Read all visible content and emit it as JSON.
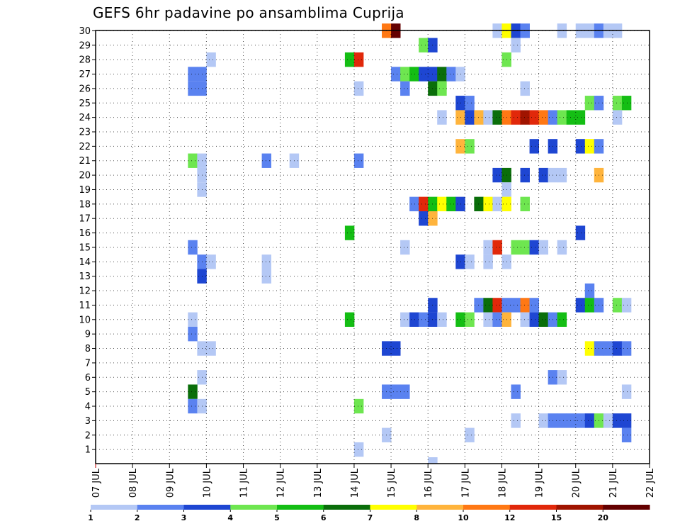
{
  "title": "GEFS 6hr padavine po ansamblima Cuprija",
  "chart_data": {
    "type": "heatmap",
    "title": "GEFS 6hr padavine po ansamblima Cuprija",
    "x_unit": "hours since 07 JUL 00Z",
    "x_tick_labels": [
      "07 JUL",
      "08 JUL",
      "09 JUL",
      "10 JUL",
      "11 JUL",
      "12 JUL",
      "13 JUL",
      "14 JUL",
      "15 JUL",
      "16 JUL",
      "17 JUL",
      "18 JUL",
      "19 JUL",
      "20 JUL",
      "21 JUL",
      "22 JUL"
    ],
    "y_tick_labels": [
      "1",
      "2",
      "3",
      "4",
      "5",
      "6",
      "7",
      "8",
      "9",
      "10",
      "11",
      "12",
      "13",
      "14",
      "15",
      "16",
      "17",
      "18",
      "19",
      "20",
      "21",
      "22",
      "23",
      "24",
      "25",
      "26",
      "27",
      "28",
      "29",
      "30"
    ],
    "ylim": [
      0,
      30
    ],
    "grid": true,
    "legend": {
      "position": "bottom",
      "bounds": [
        "1",
        "2",
        "3",
        "4",
        "5",
        "6",
        "7",
        "8",
        "10",
        "12",
        "15",
        "20"
      ],
      "colors": [
        "#b4c8f5",
        "#5a82f0",
        "#1e46d2",
        "#6ee650",
        "#14be14",
        "#0a6e0a",
        "#ffff00",
        "#ffb43c",
        "#ff7814",
        "#e1280a",
        "#a01400",
        "#640000"
      ]
    },
    "cells": [
      {
        "m": 30,
        "t": 186,
        "c": 8
      },
      {
        "m": 30,
        "t": 192,
        "c": 11
      },
      {
        "m": 30,
        "t": 258,
        "c": 0
      },
      {
        "m": 30,
        "t": 264,
        "c": 6
      },
      {
        "m": 30,
        "t": 270,
        "c": 2
      },
      {
        "m": 30,
        "t": 276,
        "c": 1
      },
      {
        "m": 30,
        "t": 300,
        "c": 0
      },
      {
        "m": 30,
        "t": 312,
        "c": 0
      },
      {
        "m": 30,
        "t": 318,
        "c": 0
      },
      {
        "m": 30,
        "t": 324,
        "c": 1
      },
      {
        "m": 30,
        "t": 330,
        "c": 0
      },
      {
        "m": 30,
        "t": 336,
        "c": 0
      },
      {
        "m": 29,
        "t": 210,
        "c": 3
      },
      {
        "m": 29,
        "t": 216,
        "c": 2
      },
      {
        "m": 29,
        "t": 270,
        "c": 0
      },
      {
        "m": 28,
        "t": 72,
        "c": 0
      },
      {
        "m": 28,
        "t": 162,
        "c": 4
      },
      {
        "m": 28,
        "t": 168,
        "c": 9
      },
      {
        "m": 28,
        "t": 264,
        "c": 3
      },
      {
        "m": 27,
        "t": 60,
        "c": 1
      },
      {
        "m": 27,
        "t": 66,
        "c": 1
      },
      {
        "m": 27,
        "t": 192,
        "c": 1
      },
      {
        "m": 27,
        "t": 198,
        "c": 3
      },
      {
        "m": 27,
        "t": 204,
        "c": 4
      },
      {
        "m": 27,
        "t": 210,
        "c": 2
      },
      {
        "m": 27,
        "t": 216,
        "c": 2
      },
      {
        "m": 27,
        "t": 222,
        "c": 5
      },
      {
        "m": 27,
        "t": 228,
        "c": 1
      },
      {
        "m": 27,
        "t": 234,
        "c": 0
      },
      {
        "m": 26,
        "t": 60,
        "c": 1
      },
      {
        "m": 26,
        "t": 66,
        "c": 1
      },
      {
        "m": 26,
        "t": 168,
        "c": 0
      },
      {
        "m": 26,
        "t": 198,
        "c": 1
      },
      {
        "m": 26,
        "t": 216,
        "c": 5
      },
      {
        "m": 26,
        "t": 222,
        "c": 3
      },
      {
        "m": 26,
        "t": 276,
        "c": 0
      },
      {
        "m": 25,
        "t": 234,
        "c": 2
      },
      {
        "m": 25,
        "t": 240,
        "c": 1
      },
      {
        "m": 25,
        "t": 318,
        "c": 3
      },
      {
        "m": 25,
        "t": 324,
        "c": 1
      },
      {
        "m": 25,
        "t": 336,
        "c": 3
      },
      {
        "m": 25,
        "t": 342,
        "c": 4
      },
      {
        "m": 24,
        "t": 222,
        "c": 0
      },
      {
        "m": 24,
        "t": 234,
        "c": 7
      },
      {
        "m": 24,
        "t": 240,
        "c": 2
      },
      {
        "m": 24,
        "t": 246,
        "c": 7
      },
      {
        "m": 24,
        "t": 252,
        "c": 0
      },
      {
        "m": 24,
        "t": 258,
        "c": 5
      },
      {
        "m": 24,
        "t": 264,
        "c": 8
      },
      {
        "m": 24,
        "t": 270,
        "c": 9
      },
      {
        "m": 24,
        "t": 276,
        "c": 10
      },
      {
        "m": 24,
        "t": 282,
        "c": 9
      },
      {
        "m": 24,
        "t": 288,
        "c": 8
      },
      {
        "m": 24,
        "t": 294,
        "c": 1
      },
      {
        "m": 24,
        "t": 300,
        "c": 3
      },
      {
        "m": 24,
        "t": 306,
        "c": 4
      },
      {
        "m": 24,
        "t": 312,
        "c": 4
      },
      {
        "m": 24,
        "t": 336,
        "c": 0
      },
      {
        "m": 22,
        "t": 234,
        "c": 7
      },
      {
        "m": 22,
        "t": 240,
        "c": 3
      },
      {
        "m": 22,
        "t": 282,
        "c": 2
      },
      {
        "m": 22,
        "t": 294,
        "c": 2
      },
      {
        "m": 22,
        "t": 312,
        "c": 2
      },
      {
        "m": 22,
        "t": 318,
        "c": 6
      },
      {
        "m": 22,
        "t": 324,
        "c": 1
      },
      {
        "m": 21,
        "t": 60,
        "c": 3
      },
      {
        "m": 21,
        "t": 66,
        "c": 0
      },
      {
        "m": 21,
        "t": 108,
        "c": 1
      },
      {
        "m": 21,
        "t": 126,
        "c": 0
      },
      {
        "m": 21,
        "t": 168,
        "c": 1
      },
      {
        "m": 20,
        "t": 66,
        "c": 0
      },
      {
        "m": 20,
        "t": 258,
        "c": 2
      },
      {
        "m": 20,
        "t": 264,
        "c": 5
      },
      {
        "m": 20,
        "t": 276,
        "c": 2
      },
      {
        "m": 20,
        "t": 288,
        "c": 2
      },
      {
        "m": 20,
        "t": 294,
        "c": 0
      },
      {
        "m": 20,
        "t": 300,
        "c": 0
      },
      {
        "m": 20,
        "t": 324,
        "c": 7
      },
      {
        "m": 19,
        "t": 66,
        "c": 0
      },
      {
        "m": 19,
        "t": 264,
        "c": 0
      },
      {
        "m": 18,
        "t": 204,
        "c": 1
      },
      {
        "m": 18,
        "t": 210,
        "c": 9
      },
      {
        "m": 18,
        "t": 216,
        "c": 4
      },
      {
        "m": 18,
        "t": 222,
        "c": 6
      },
      {
        "m": 18,
        "t": 228,
        "c": 4
      },
      {
        "m": 18,
        "t": 234,
        "c": 2
      },
      {
        "m": 18,
        "t": 246,
        "c": 5
      },
      {
        "m": 18,
        "t": 252,
        "c": 6
      },
      {
        "m": 18,
        "t": 258,
        "c": 0
      },
      {
        "m": 18,
        "t": 264,
        "c": 6
      },
      {
        "m": 18,
        "t": 276,
        "c": 3
      },
      {
        "m": 17,
        "t": 210,
        "c": 2
      },
      {
        "m": 17,
        "t": 216,
        "c": 7
      },
      {
        "m": 16,
        "t": 162,
        "c": 4
      },
      {
        "m": 16,
        "t": 312,
        "c": 2
      },
      {
        "m": 15,
        "t": 60,
        "c": 1
      },
      {
        "m": 15,
        "t": 198,
        "c": 0
      },
      {
        "m": 15,
        "t": 252,
        "c": 0
      },
      {
        "m": 15,
        "t": 258,
        "c": 9
      },
      {
        "m": 15,
        "t": 270,
        "c": 3
      },
      {
        "m": 15,
        "t": 276,
        "c": 3
      },
      {
        "m": 15,
        "t": 282,
        "c": 2
      },
      {
        "m": 15,
        "t": 288,
        "c": 0
      },
      {
        "m": 15,
        "t": 300,
        "c": 0
      },
      {
        "m": 14,
        "t": 66,
        "c": 1
      },
      {
        "m": 14,
        "t": 72,
        "c": 0
      },
      {
        "m": 14,
        "t": 108,
        "c": 0
      },
      {
        "m": 14,
        "t": 234,
        "c": 2
      },
      {
        "m": 14,
        "t": 240,
        "c": 0
      },
      {
        "m": 14,
        "t": 252,
        "c": 0
      },
      {
        "m": 14,
        "t": 264,
        "c": 0
      },
      {
        "m": 13,
        "t": 66,
        "c": 2
      },
      {
        "m": 13,
        "t": 108,
        "c": 0
      },
      {
        "m": 12,
        "t": 318,
        "c": 1
      },
      {
        "m": 11,
        "t": 216,
        "c": 2
      },
      {
        "m": 11,
        "t": 246,
        "c": 1
      },
      {
        "m": 11,
        "t": 252,
        "c": 5
      },
      {
        "m": 11,
        "t": 258,
        "c": 9
      },
      {
        "m": 11,
        "t": 264,
        "c": 1
      },
      {
        "m": 11,
        "t": 270,
        "c": 1
      },
      {
        "m": 11,
        "t": 276,
        "c": 8
      },
      {
        "m": 11,
        "t": 282,
        "c": 1
      },
      {
        "m": 11,
        "t": 312,
        "c": 2
      },
      {
        "m": 11,
        "t": 318,
        "c": 4
      },
      {
        "m": 11,
        "t": 324,
        "c": 1
      },
      {
        "m": 11,
        "t": 336,
        "c": 3
      },
      {
        "m": 11,
        "t": 342,
        "c": 0
      },
      {
        "m": 10,
        "t": 60,
        "c": 0
      },
      {
        "m": 10,
        "t": 162,
        "c": 4
      },
      {
        "m": 10,
        "t": 198,
        "c": 0
      },
      {
        "m": 10,
        "t": 204,
        "c": 2
      },
      {
        "m": 10,
        "t": 210,
        "c": 1
      },
      {
        "m": 10,
        "t": 216,
        "c": 2
      },
      {
        "m": 10,
        "t": 222,
        "c": 0
      },
      {
        "m": 10,
        "t": 234,
        "c": 4
      },
      {
        "m": 10,
        "t": 240,
        "c": 3
      },
      {
        "m": 10,
        "t": 252,
        "c": 0
      },
      {
        "m": 10,
        "t": 258,
        "c": 1
      },
      {
        "m": 10,
        "t": 264,
        "c": 7
      },
      {
        "m": 10,
        "t": 276,
        "c": 0
      },
      {
        "m": 10,
        "t": 282,
        "c": 2
      },
      {
        "m": 10,
        "t": 288,
        "c": 5
      },
      {
        "m": 10,
        "t": 294,
        "c": 1
      },
      {
        "m": 10,
        "t": 300,
        "c": 4
      },
      {
        "m": 9,
        "t": 60,
        "c": 1
      },
      {
        "m": 8,
        "t": 66,
        "c": 0
      },
      {
        "m": 8,
        "t": 72,
        "c": 0
      },
      {
        "m": 8,
        "t": 186,
        "c": 2
      },
      {
        "m": 8,
        "t": 192,
        "c": 2
      },
      {
        "m": 8,
        "t": 318,
        "c": 6
      },
      {
        "m": 8,
        "t": 324,
        "c": 1
      },
      {
        "m": 8,
        "t": 330,
        "c": 1
      },
      {
        "m": 8,
        "t": 336,
        "c": 2
      },
      {
        "m": 8,
        "t": 342,
        "c": 1
      },
      {
        "m": 6,
        "t": 66,
        "c": 0
      },
      {
        "m": 6,
        "t": 294,
        "c": 1
      },
      {
        "m": 6,
        "t": 300,
        "c": 0
      },
      {
        "m": 5,
        "t": 60,
        "c": 5
      },
      {
        "m": 5,
        "t": 186,
        "c": 1
      },
      {
        "m": 5,
        "t": 192,
        "c": 1
      },
      {
        "m": 5,
        "t": 198,
        "c": 1
      },
      {
        "m": 5,
        "t": 270,
        "c": 1
      },
      {
        "m": 5,
        "t": 342,
        "c": 0
      },
      {
        "m": 4,
        "t": 60,
        "c": 1
      },
      {
        "m": 4,
        "t": 66,
        "c": 0
      },
      {
        "m": 4,
        "t": 168,
        "c": 3
      },
      {
        "m": 3,
        "t": 270,
        "c": 0
      },
      {
        "m": 3,
        "t": 288,
        "c": 0
      },
      {
        "m": 3,
        "t": 294,
        "c": 1
      },
      {
        "m": 3,
        "t": 300,
        "c": 1
      },
      {
        "m": 3,
        "t": 306,
        "c": 1
      },
      {
        "m": 3,
        "t": 312,
        "c": 1
      },
      {
        "m": 3,
        "t": 318,
        "c": 2
      },
      {
        "m": 3,
        "t": 324,
        "c": 3
      },
      {
        "m": 3,
        "t": 330,
        "c": 0
      },
      {
        "m": 3,
        "t": 336,
        "c": 2
      },
      {
        "m": 3,
        "t": 342,
        "c": 2
      },
      {
        "m": 2,
        "t": 186,
        "c": 0
      },
      {
        "m": 2,
        "t": 240,
        "c": 0
      },
      {
        "m": 2,
        "t": 342,
        "c": 1
      },
      {
        "m": 1,
        "t": 168,
        "c": 0
      },
      {
        "m": 0,
        "t": 216,
        "c": 0
      }
    ]
  }
}
